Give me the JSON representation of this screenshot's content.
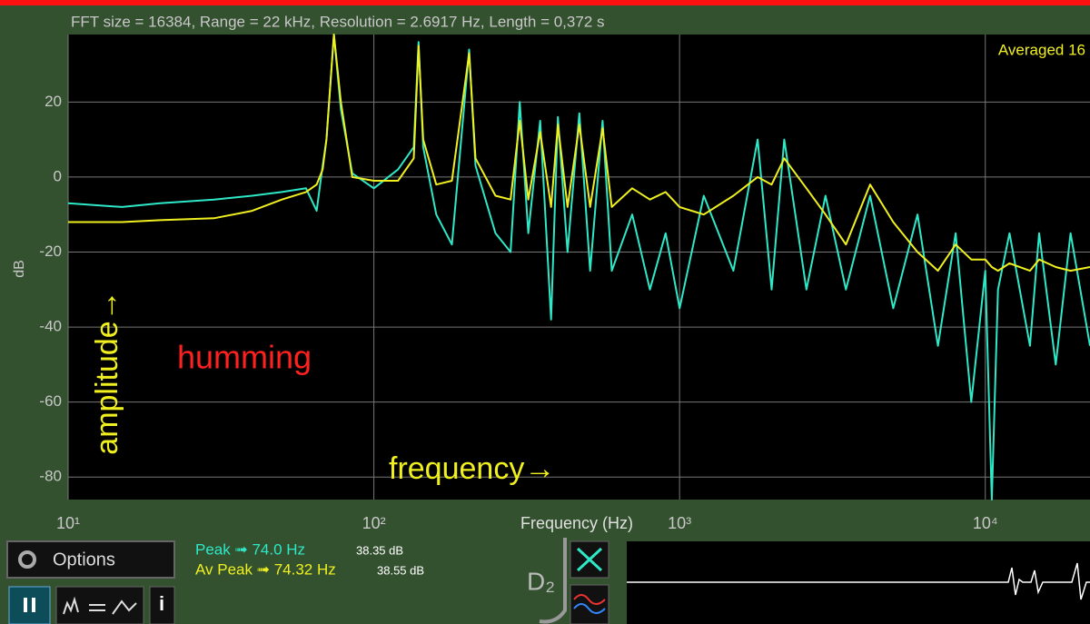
{
  "chart_data": {
    "type": "line",
    "title": "FFT size = 16384, Range = 22 kHz, Resolution = 2.6917 Hz, Length = 0,372 s",
    "legend_note": "Averaged 16",
    "x_label": "Frequency (Hz)",
    "y_label": "dB",
    "annotations": [
      "amplitude→",
      "humming",
      "frequency→"
    ],
    "x": [
      10,
      15,
      20,
      30,
      40,
      50,
      60,
      65,
      68,
      70,
      74,
      78,
      85,
      100,
      120,
      135,
      140,
      145,
      160,
      180,
      205,
      215,
      250,
      280,
      300,
      320,
      350,
      380,
      400,
      430,
      470,
      510,
      560,
      600,
      700,
      800,
      900,
      1000,
      1200,
      1500,
      1800,
      2000,
      2200,
      2600,
      3000,
      3500,
      4200,
      5000,
      6000,
      7000,
      8000,
      9000,
      10000,
      10500,
      11000,
      12000,
      14000,
      15000,
      17000,
      19000,
      22000
    ],
    "series": [
      {
        "name": "Peak",
        "color": "#2ee8c8",
        "values": [
          -7,
          -8,
          -7,
          -6,
          -5,
          -4,
          -3,
          -9,
          3,
          10,
          38,
          18,
          1,
          -3,
          2,
          8,
          36,
          8,
          -10,
          -18,
          34,
          3,
          -15,
          -20,
          20,
          -15,
          15,
          -38,
          16,
          -20,
          17,
          -25,
          15,
          -25,
          -10,
          -30,
          -15,
          -35,
          -5,
          -25,
          10,
          -30,
          10,
          -30,
          -5,
          -30,
          -5,
          -35,
          -10,
          -45,
          -15,
          -60,
          -25,
          -86,
          -30,
          -15,
          -45,
          -15,
          -50,
          -15,
          -45
        ]
      },
      {
        "name": "Av Peak",
        "color": "#f0f020",
        "values": [
          -12,
          -12,
          -11.5,
          -11,
          -9,
          -6,
          -4,
          -2,
          2,
          10,
          38,
          20,
          0,
          -1,
          -1,
          5,
          35,
          10,
          -2,
          -1,
          33,
          5,
          -5,
          -6,
          15,
          -6,
          12,
          -8,
          14,
          -8,
          14,
          -8,
          13,
          -8,
          -3,
          -6,
          -4,
          -8,
          -10,
          -5,
          0,
          -2,
          5,
          -3,
          -10,
          -18,
          -2,
          -12,
          -20,
          -25,
          -18,
          -22,
          -22,
          -24,
          -25,
          -23,
          -25,
          -22,
          -24,
          -25,
          -24
        ]
      }
    ],
    "xlim": [
      10,
      22000
    ],
    "ylim": [
      -86,
      38
    ],
    "x_log": true,
    "grid": true,
    "xticks": [
      {
        "value": 10,
        "label": "10¹"
      },
      {
        "value": 100,
        "label": "10²"
      },
      {
        "value": 1000,
        "label": "10³"
      },
      {
        "value": 10000,
        "label": "10⁴"
      }
    ],
    "yticks": [
      20,
      0,
      -20,
      -40,
      -60,
      -80
    ]
  },
  "ui": {
    "options": "Options",
    "info": "i",
    "d2": "D₂",
    "peak": {
      "label": "Peak ➟ 74.0 Hz",
      "db": "38.35 dB"
    },
    "av_peak": {
      "label": "Av Peak ➟ 74.32 Hz",
      "db": "38.55 dB"
    }
  }
}
